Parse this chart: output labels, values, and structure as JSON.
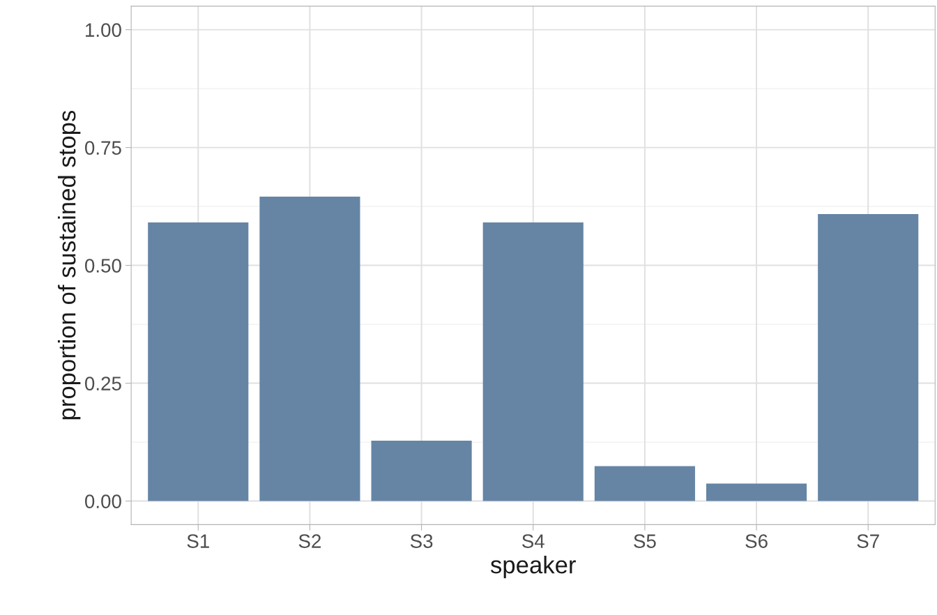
{
  "chart_data": {
    "type": "bar",
    "xlabel": "speaker",
    "ylabel": "proportion of sustained stops",
    "categories": [
      "S1",
      "S2",
      "S3",
      "S4",
      "S5",
      "S6",
      "S7"
    ],
    "values": [
      0.591,
      0.646,
      0.128,
      0.591,
      0.074,
      0.037,
      0.609
    ],
    "color": "#6685a5",
    "ylim": [
      -0.05,
      1.05
    ],
    "yticks": [
      {
        "value": 0,
        "label": "0.00"
      },
      {
        "value": 0.25,
        "label": "0.25"
      },
      {
        "value": 0.5,
        "label": "0.50"
      },
      {
        "value": 0.75,
        "label": "0.75"
      },
      {
        "value": 1,
        "label": "1.00"
      }
    ],
    "grid": true
  }
}
